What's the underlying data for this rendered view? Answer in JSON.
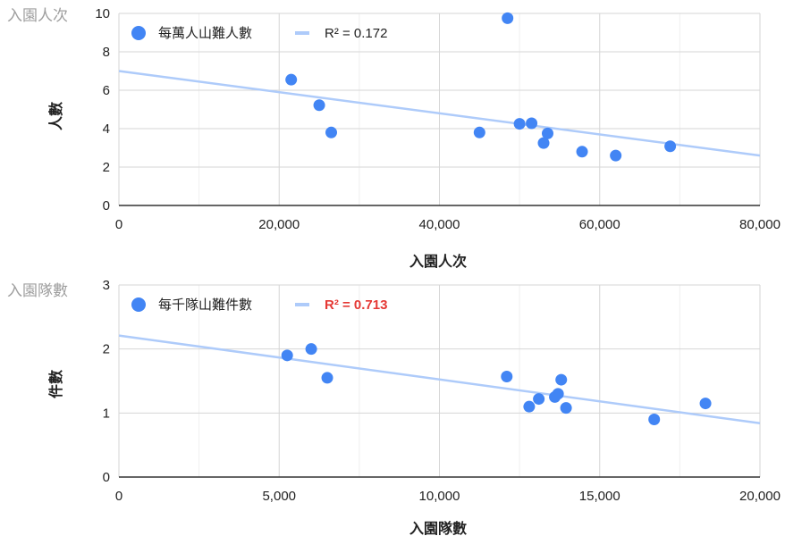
{
  "chart_data": [
    {
      "type": "scatter",
      "corner_label": "入園人次",
      "xlabel": "入園人次",
      "ylabel": "人數",
      "xlim": [
        0,
        80000
      ],
      "ylim": [
        0,
        10
      ],
      "x_ticks": [
        "0",
        "20,000",
        "40,000",
        "60,000",
        "80,000"
      ],
      "y_ticks": [
        "0",
        "2",
        "4",
        "6",
        "8",
        "10"
      ],
      "grid": true,
      "legend_position": "top-left",
      "series": [
        {
          "name": "每萬人山難人數",
          "color": "#4285f4",
          "points": [
            [
              21500,
              6.55
            ],
            [
              25000,
              5.22
            ],
            [
              26500,
              3.8
            ],
            [
              45000,
              3.8
            ],
            [
              48500,
              9.75
            ],
            [
              50000,
              4.25
            ],
            [
              51500,
              4.28
            ],
            [
              53000,
              3.25
            ],
            [
              53500,
              3.75
            ],
            [
              57800,
              2.8
            ],
            [
              62000,
              2.6
            ],
            [
              68800,
              3.08
            ]
          ]
        }
      ],
      "trendline": {
        "color": "#aecbfa",
        "y_at_xmin": 7.0,
        "y_at_xmax": 2.6,
        "label": "R² = 0.172",
        "label_color": "#222222"
      }
    },
    {
      "type": "scatter",
      "corner_label": "入園隊數",
      "xlabel": "入園隊數",
      "ylabel": "件數",
      "xlim": [
        0,
        20000
      ],
      "ylim": [
        0,
        3
      ],
      "x_ticks": [
        "0",
        "5,000",
        "10,000",
        "15,000",
        "20,000"
      ],
      "y_ticks": [
        "0",
        "1",
        "2",
        "3"
      ],
      "grid": true,
      "legend_position": "top-left",
      "series": [
        {
          "name": "每千隊山難件數",
          "color": "#4285f4",
          "points": [
            [
              5250,
              1.9
            ],
            [
              6000,
              2.0
            ],
            [
              6500,
              1.55
            ],
            [
              12100,
              1.57
            ],
            [
              12800,
              1.1
            ],
            [
              13100,
              1.22
            ],
            [
              13600,
              1.25
            ],
            [
              13700,
              1.3
            ],
            [
              13800,
              1.52
            ],
            [
              13950,
              1.08
            ],
            [
              16700,
              0.9
            ],
            [
              18300,
              1.15
            ]
          ]
        }
      ],
      "trendline": {
        "color": "#aecbfa",
        "y_at_xmin": 2.21,
        "y_at_xmax": 0.84,
        "label": "R² = 0.713",
        "label_color": "#e53935"
      }
    }
  ]
}
